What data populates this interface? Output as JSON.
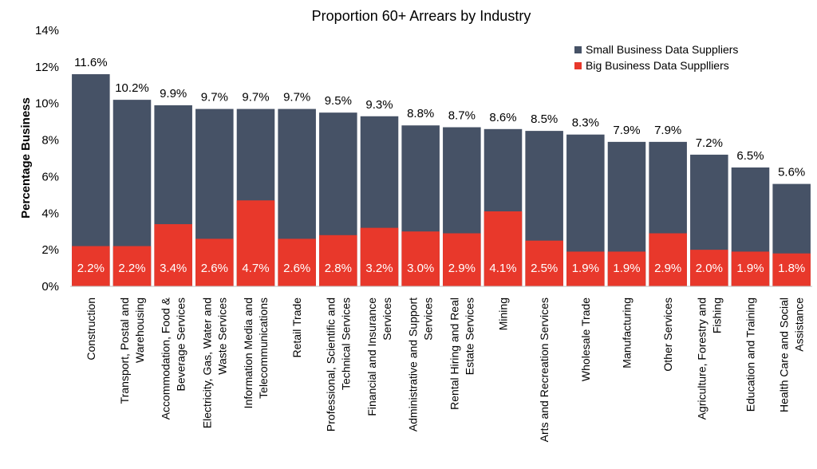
{
  "chart_data": {
    "type": "bar",
    "stacked": true,
    "title": "Proportion 60+ Arrears by Industry",
    "ylabel": "Percentage Business",
    "xlabel": "",
    "ylim": [
      0,
      14
    ],
    "yticks": [
      "0%",
      "2%",
      "4%",
      "6%",
      "8%",
      "10%",
      "12%",
      "14%"
    ],
    "grid": false,
    "legend_position": "top-right",
    "categories": [
      [
        "Construction"
      ],
      [
        "Transport, Postal and",
        "Warehousing"
      ],
      [
        "Accommodation, Food &",
        "Beverage Services"
      ],
      [
        "Electricity, Gas, Water and",
        "Waste Services"
      ],
      [
        "Information Media and",
        "Telecommunications"
      ],
      [
        "Retail Trade"
      ],
      [
        "Professional, Scientific and",
        "Technical Services"
      ],
      [
        "Financial and Insurance",
        "Services"
      ],
      [
        "Administrative and Support",
        "Services"
      ],
      [
        "Rental Hiring and Real",
        "Estate Services"
      ],
      [
        "Mining"
      ],
      [
        "Arts and Recreation Services"
      ],
      [
        "Wholesale Trade"
      ],
      [
        "Manufacturing"
      ],
      [
        "Other Services"
      ],
      [
        "Agriculture, Forestry and",
        "Fishing"
      ],
      [
        "Education and Training"
      ],
      [
        "Health Care and Social",
        "Assistance"
      ]
    ],
    "series": [
      {
        "name": "Small Business Data Suppliers",
        "color": "#465266",
        "values": [
          11.6,
          10.2,
          9.9,
          9.7,
          9.7,
          9.7,
          9.5,
          9.3,
          8.8,
          8.7,
          8.6,
          8.5,
          8.3,
          7.9,
          7.9,
          7.2,
          6.5,
          5.6
        ],
        "labels": [
          "11.6%",
          "10.2%",
          "9.9%",
          "9.7%",
          "9.7%",
          "9.7%",
          "9.5%",
          "9.3%",
          "8.8%",
          "8.7%",
          "8.6%",
          "8.5%",
          "8.3%",
          "7.9%",
          "7.9%",
          "7.2%",
          "6.5%",
          "5.6%"
        ]
      },
      {
        "name": "Big Business Data Supplliers",
        "color": "#e8382b",
        "values": [
          2.2,
          2.2,
          3.4,
          2.6,
          4.7,
          2.6,
          2.8,
          3.2,
          3.0,
          2.9,
          4.1,
          2.5,
          1.9,
          1.9,
          2.9,
          2.0,
          1.9,
          1.8
        ],
        "labels": [
          "2.2%",
          "2.2%",
          "3.4%",
          "2.6%",
          "4.7%",
          "2.6%",
          "2.8%",
          "3.2%",
          "3.0%",
          "2.9%",
          "4.1%",
          "2.5%",
          "1.9%",
          "1.9%",
          "2.9%",
          "2.0%",
          "1.9%",
          "1.8%"
        ]
      }
    ]
  }
}
